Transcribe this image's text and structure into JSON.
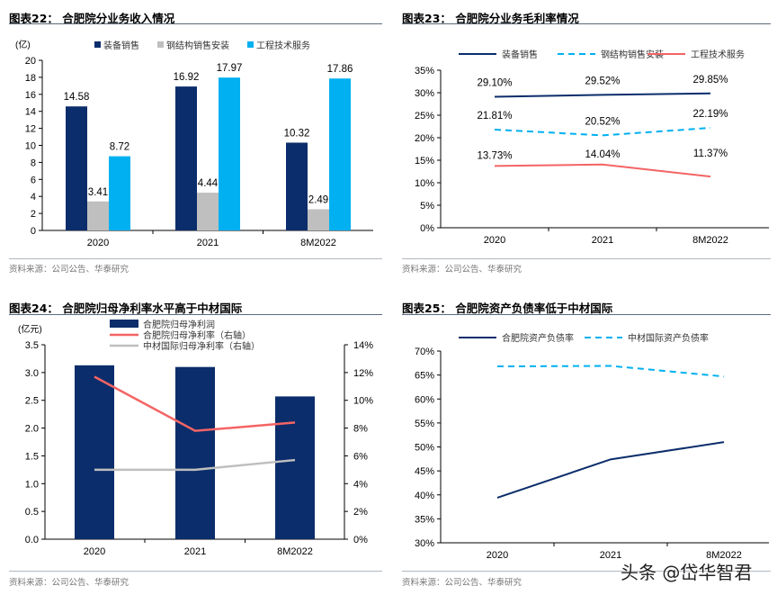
{
  "chart_data": [
    {
      "type": "bar",
      "title": "图表22： 合肥院分业务收入情况",
      "unit": "(亿)",
      "categories": [
        "2020",
        "2021",
        "8M2022"
      ],
      "ylim": [
        0,
        20
      ],
      "yticks": [
        0,
        2,
        4,
        6,
        8,
        10,
        12,
        14,
        16,
        18,
        20
      ],
      "series": [
        {
          "name": "装备销售",
          "color": "#0b2d6b",
          "values": [
            14.58,
            16.92,
            10.32
          ]
        },
        {
          "name": "钢结构销售安装",
          "color": "#bfbfbf",
          "values": [
            3.41,
            4.44,
            2.49
          ]
        },
        {
          "name": "工程技术服务",
          "color": "#00b0f0",
          "values": [
            8.72,
            17.97,
            17.86
          ]
        }
      ],
      "legend": "top",
      "source": "资料来源：公司公告、华泰研究"
    },
    {
      "type": "line",
      "title": "图表23： 合肥院分业务毛利率情况",
      "categories": [
        "2020",
        "2021",
        "8M2022"
      ],
      "ylim": [
        0,
        35
      ],
      "yticks": [
        "0%",
        "5%",
        "10%",
        "15%",
        "20%",
        "25%",
        "30%",
        "35%"
      ],
      "series": [
        {
          "name": "装备销售",
          "color": "#0b2d6b",
          "style": "solid",
          "values": [
            29.1,
            29.52,
            29.85
          ],
          "labels": [
            "29.10%",
            "29.52%",
            "29.85%"
          ]
        },
        {
          "name": "钢结构销售安装",
          "color": "#00b0f0",
          "style": "dashed",
          "values": [
            21.81,
            20.52,
            22.19
          ],
          "labels": [
            "21.81%",
            "20.52%",
            "22.19%"
          ]
        },
        {
          "name": "工程技术服务",
          "color": "#f46464",
          "style": "solid",
          "values": [
            13.73,
            14.04,
            11.37
          ],
          "labels": [
            "13.73%",
            "14.04%",
            "11.37%"
          ]
        }
      ],
      "legend": "top",
      "source": "资料来源：公司公告、华泰研究"
    },
    {
      "type": "bar+line",
      "title": "图表24： 合肥院归母净利率水平高于中材国际",
      "unit": "(亿元)",
      "categories": [
        "2020",
        "2021",
        "8M2022"
      ],
      "ylim": [
        0,
        3.5
      ],
      "yticks": [
        "0.0",
        "0.5",
        "1.0",
        "1.5",
        "2.0",
        "2.5",
        "3.0",
        "3.5"
      ],
      "y2lim": [
        0,
        14
      ],
      "y2ticks": [
        "0%",
        "2%",
        "4%",
        "6%",
        "8%",
        "10%",
        "12%",
        "14%"
      ],
      "series": [
        {
          "name": "合肥院归母净利润",
          "color": "#0b2d6b",
          "kind": "bar",
          "axis": "left",
          "values": [
            3.13,
            3.1,
            2.57
          ]
        },
        {
          "name": "合肥院归母净利率（右轴）",
          "color": "#f46464",
          "kind": "line",
          "axis": "right",
          "values": [
            11.7,
            7.8,
            8.4
          ]
        },
        {
          "name": "中材国际归母净利率（右轴）",
          "color": "#bfbfbf",
          "kind": "line",
          "axis": "right",
          "values": [
            5.0,
            5.0,
            5.7
          ]
        }
      ],
      "legend": "top",
      "source": "资料来源：公司公告、华泰研究"
    },
    {
      "type": "line",
      "title": "图表25： 合肥院资产负债率低于中材国际",
      "categories": [
        "2020",
        "2021",
        "8M2022"
      ],
      "ylim": [
        30,
        70
      ],
      "yticks": [
        "30%",
        "35%",
        "40%",
        "45%",
        "50%",
        "55%",
        "60%",
        "65%",
        "70%"
      ],
      "series": [
        {
          "name": "合肥院资产负债率",
          "color": "#0b2d6b",
          "style": "solid",
          "values": [
            39.4,
            47.4,
            51.0
          ]
        },
        {
          "name": "中材国际资产负债率",
          "color": "#00b0f0",
          "style": "dashed",
          "values": [
            66.8,
            66.9,
            64.7
          ]
        }
      ],
      "legend": "top",
      "source": "资料来源：公司公告、华泰研究"
    }
  ],
  "watermark": "头条 @岱华智君"
}
